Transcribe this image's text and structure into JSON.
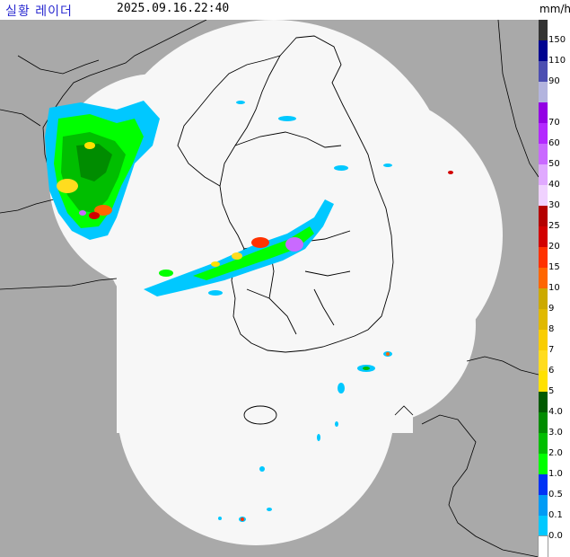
{
  "header": {
    "title": "실황 레이더",
    "timestamp": "2025.09.16.22:40",
    "unit": "mm/h"
  },
  "legend": {
    "levels": [
      {
        "label": "150",
        "color": "#333333"
      },
      {
        "label": "110",
        "color": "#000390"
      },
      {
        "label": "90",
        "color": "#4c4eb1"
      },
      {
        "label": "",
        "color": "#b3b4de"
      },
      {
        "label": "70",
        "color": "#9300e4"
      },
      {
        "label": "60",
        "color": "#b329ff"
      },
      {
        "label": "50",
        "color": "#c969ff"
      },
      {
        "label": "40",
        "color": "#e0a9ff"
      },
      {
        "label": "30",
        "color": "#f0d2ff"
      },
      {
        "label": "25",
        "color": "#b40000"
      },
      {
        "label": "20",
        "color": "#d20000"
      },
      {
        "label": "15",
        "color": "#ff3200"
      },
      {
        "label": "10",
        "color": "#ff6600"
      },
      {
        "label": "9",
        "color": "#ccaa00"
      },
      {
        "label": "8",
        "color": "#e0b900"
      },
      {
        "label": "7",
        "color": "#f9cd00"
      },
      {
        "label": "6",
        "color": "#ffdc1f"
      },
      {
        "label": "5",
        "color": "#ffe100"
      },
      {
        "label": "4.0",
        "color": "#005a00"
      },
      {
        "label": "3.0",
        "color": "#008c00"
      },
      {
        "label": "2.0",
        "color": "#00be00"
      },
      {
        "label": "1.0",
        "color": "#00ff00"
      },
      {
        "label": "0.5",
        "color": "#0033f5"
      },
      {
        "label": "0.1",
        "color": "#009bf5"
      },
      {
        "label": "0.0",
        "color": "#00c8ff"
      }
    ],
    "empty_color": "#ffffff"
  },
  "map": {
    "background_color": "#a9a9a9",
    "coverage_color": "#f7f7f7",
    "border_color": "#000000"
  }
}
